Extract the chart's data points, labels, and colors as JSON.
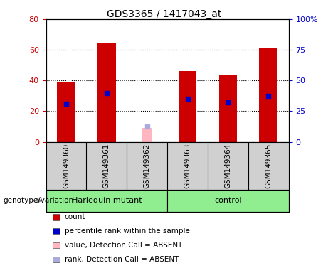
{
  "title": "GDS3365 / 1417043_at",
  "samples": [
    "GSM149360",
    "GSM149361",
    "GSM149362",
    "GSM149363",
    "GSM149364",
    "GSM149365"
  ],
  "counts": [
    39,
    64,
    null,
    46,
    44,
    61
  ],
  "percentile_ranks": [
    25,
    32,
    null,
    28,
    26,
    30
  ],
  "absent_value": [
    null,
    null,
    9,
    null,
    null,
    null
  ],
  "absent_rank": [
    null,
    null,
    10,
    null,
    null,
    null
  ],
  "groups": [
    {
      "label": "Harlequin mutant",
      "start": 0,
      "end": 2,
      "color": "#90EE90"
    },
    {
      "label": "control",
      "start": 3,
      "end": 5,
      "color": "#90EE90"
    }
  ],
  "left_ylim": [
    0,
    80
  ],
  "right_ylim": [
    0,
    100
  ],
  "left_yticks": [
    0,
    20,
    40,
    60,
    80
  ],
  "right_yticks": [
    0,
    25,
    50,
    75,
    100
  ],
  "right_yticklabels": [
    "0",
    "25",
    "50",
    "75",
    "100%"
  ],
  "bar_color": "#CC0000",
  "rank_color": "#0000CC",
  "absent_val_color": "#FFB6C1",
  "absent_rank_color": "#AAAADD",
  "bar_width": 0.45,
  "rank_marker_size": 5,
  "grid_color": "black",
  "sample_bg_color": "#D0D0D0",
  "left_tick_color": "#CC0000",
  "right_tick_color": "#0000CC",
  "legend_items": [
    {
      "color": "#CC0000",
      "label": "count"
    },
    {
      "color": "#0000CC",
      "label": "percentile rank within the sample"
    },
    {
      "color": "#FFB6C1",
      "label": "value, Detection Call = ABSENT"
    },
    {
      "color": "#AAAADD",
      "label": "rank, Detection Call = ABSENT"
    }
  ]
}
